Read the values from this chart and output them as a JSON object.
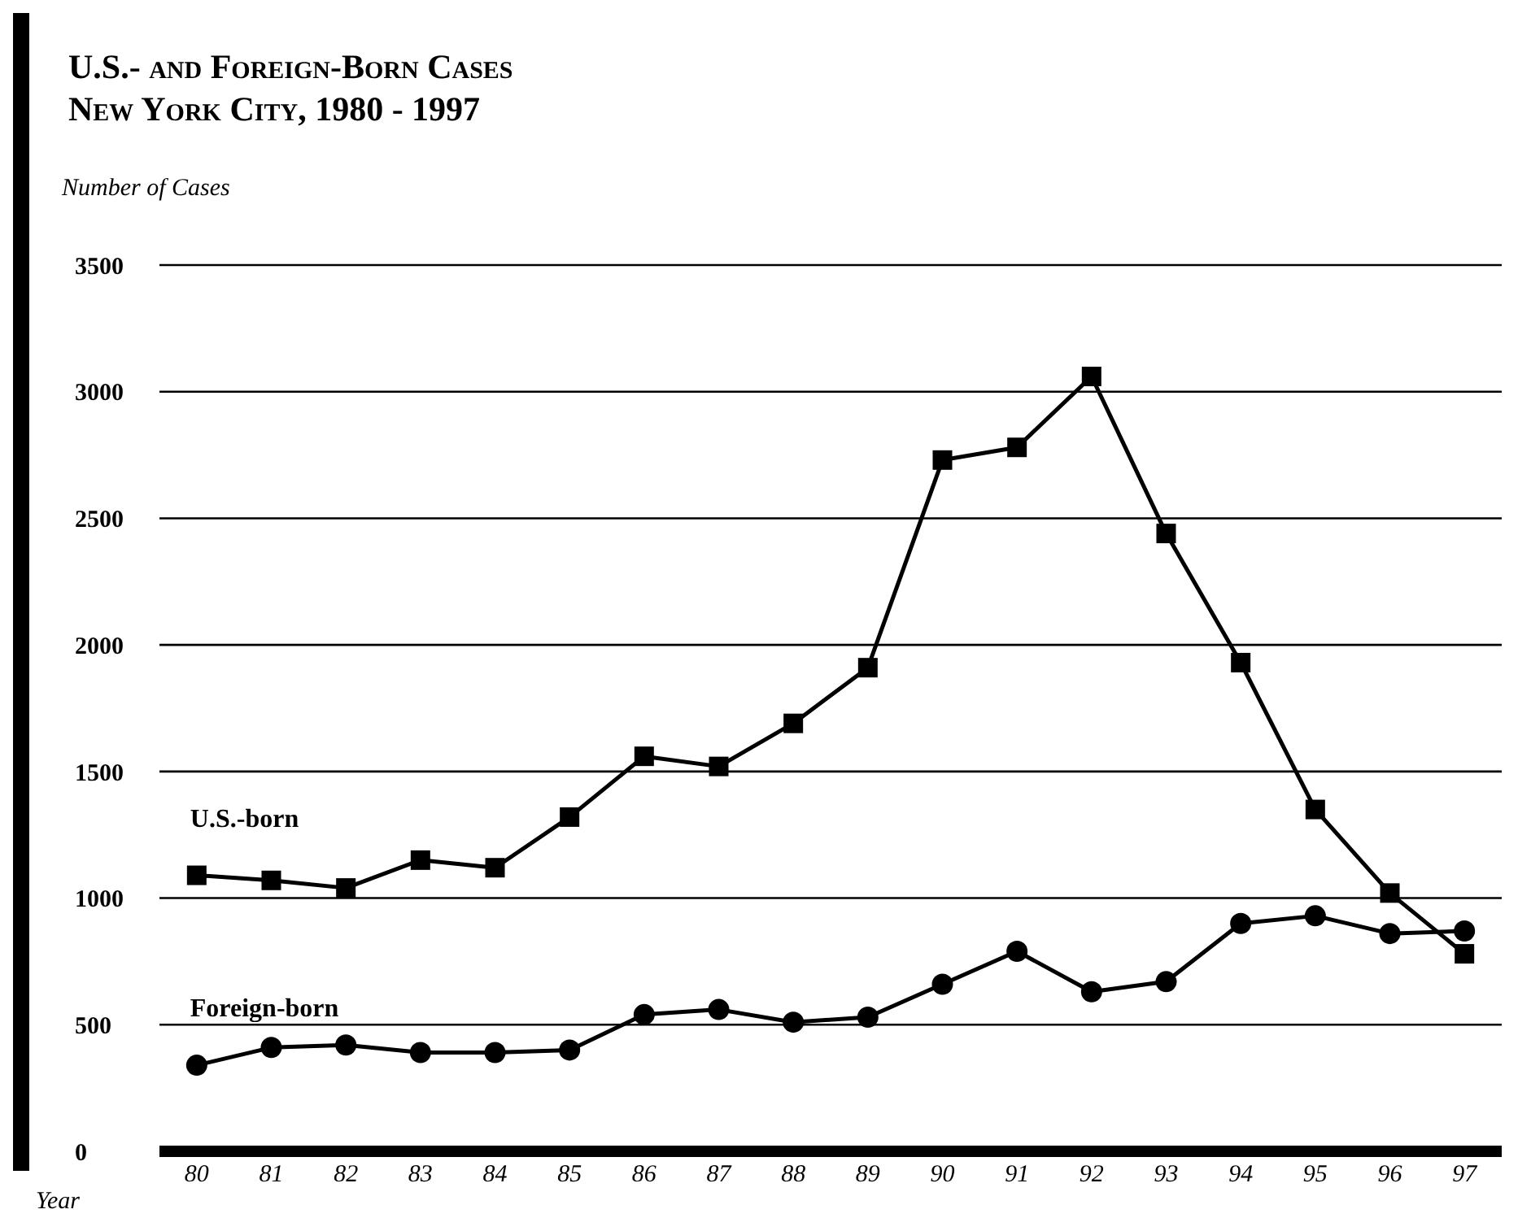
{
  "chart_data": {
    "type": "line",
    "title": "U.S.- and Foreign-Born Cases\nNew York City, 1980 - 1997",
    "ylabel": "Number of Cases",
    "xlabel": "Year",
    "categories": [
      "80",
      "81",
      "82",
      "83",
      "84",
      "85",
      "86",
      "87",
      "88",
      "89",
      "90",
      "91",
      "92",
      "93",
      "94",
      "95",
      "96",
      "97"
    ],
    "series": [
      {
        "name": "U.S.-born",
        "color": "#000000",
        "marker": "square",
        "values": [
          1090,
          1070,
          1040,
          1150,
          1120,
          1320,
          1560,
          1520,
          1690,
          1910,
          2730,
          2780,
          3060,
          2440,
          1930,
          1350,
          1020,
          780
        ]
      },
      {
        "name": "Foreign-born",
        "color": "#000000",
        "marker": "circle",
        "values": [
          340,
          410,
          420,
          390,
          390,
          400,
          540,
          560,
          510,
          530,
          660,
          790,
          630,
          670,
          900,
          930,
          860,
          870
        ]
      }
    ],
    "ylim": [
      0,
      3500
    ],
    "yticks": [
      0,
      500,
      1000,
      1500,
      2000,
      2500,
      3000,
      3500
    ],
    "grid": "y"
  }
}
